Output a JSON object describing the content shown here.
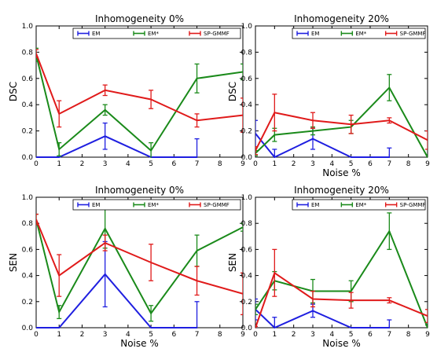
{
  "chart_data": [
    {
      "type": "line",
      "title": "Inhomogeneity 0%",
      "xlabel": "",
      "ylabel": "DSC",
      "xlim": [
        0,
        9
      ],
      "ylim": [
        0,
        1.0
      ],
      "xticks": [
        "0",
        "1",
        "2",
        "3",
        "4",
        "5",
        "6",
        "7",
        "8",
        "9"
      ],
      "yticks": [
        "0.0",
        "0.2",
        "0.4",
        "0.6",
        "0.8",
        "1.0"
      ],
      "legend": "top",
      "series": [
        {
          "name": "EM",
          "color": "#1f1fe0",
          "x": [
            0,
            1,
            3,
            5,
            7
          ],
          "y": [
            0.0,
            0.0,
            0.16,
            0.0,
            0.0
          ],
          "err": [
            0,
            0,
            0.1,
            0,
            0.14
          ]
        },
        {
          "name": "EM*",
          "color": "#1a8a1a",
          "x": [
            0,
            1,
            3,
            5,
            7,
            9
          ],
          "y": [
            0.78,
            0.06,
            0.36,
            0.05,
            0.6,
            0.65
          ],
          "err": [
            0.05,
            0.05,
            0.04,
            0.06,
            0.11,
            0.06
          ]
        },
        {
          "name": "SP-GMMF",
          "color": "#e01a1a",
          "x": [
            0,
            1,
            3,
            5,
            7,
            9
          ],
          "y": [
            0.79,
            0.33,
            0.51,
            0.44,
            0.28,
            0.32
          ],
          "err": [
            0.03,
            0.1,
            0.04,
            0.07,
            0.05,
            0.13
          ]
        }
      ]
    },
    {
      "type": "line",
      "title": "Inhomogeneity 20%",
      "xlabel": "Noise %",
      "ylabel": "DSC",
      "xlim": [
        0,
        9
      ],
      "ylim": [
        0,
        1.0
      ],
      "xticks": [
        "0",
        "1",
        "2",
        "3",
        "4",
        "5",
        "6",
        "7",
        "8",
        "9"
      ],
      "yticks": [
        "0.0",
        "0.2",
        "0.4",
        "0.6",
        "0.8",
        "1.0"
      ],
      "legend": "top",
      "series": [
        {
          "name": "EM",
          "color": "#1f1fe0",
          "x": [
            0,
            1,
            3,
            5,
            7
          ],
          "y": [
            0.18,
            0.0,
            0.14,
            0.0,
            0.0
          ],
          "err": [
            0.1,
            0.06,
            0.08,
            0,
            0.07
          ]
        },
        {
          "name": "EM*",
          "color": "#1a8a1a",
          "x": [
            0,
            1,
            3,
            5,
            7,
            9
          ],
          "y": [
            0.03,
            0.17,
            0.2,
            0.23,
            0.53,
            0.0
          ],
          "err": [
            0.02,
            0.05,
            0.03,
            0.05,
            0.1,
            0.02
          ]
        },
        {
          "name": "SP-GMMF",
          "color": "#e01a1a",
          "x": [
            0,
            1,
            3,
            5,
            7,
            9
          ],
          "y": [
            0.05,
            0.34,
            0.28,
            0.25,
            0.28,
            0.13
          ],
          "err": [
            0.03,
            0.14,
            0.06,
            0.07,
            0.02,
            0.07
          ]
        }
      ]
    },
    {
      "type": "line",
      "title": "Inhomogeneity 0%",
      "xlabel": "Noise %",
      "ylabel": "SEN",
      "xlim": [
        0,
        9
      ],
      "ylim": [
        0,
        1.0
      ],
      "xticks": [
        "0",
        "1",
        "2",
        "3",
        "4",
        "5",
        "6",
        "7",
        "8",
        "9"
      ],
      "yticks": [
        "0.0",
        "0.2",
        "0.4",
        "0.6",
        "0.8",
        "1.0"
      ],
      "legend": "top",
      "series": [
        {
          "name": "EM",
          "color": "#1f1fe0",
          "x": [
            0,
            1,
            3,
            5,
            7
          ],
          "y": [
            0.0,
            0.0,
            0.41,
            0.0,
            0.0
          ],
          "err": [
            0,
            0,
            0.25,
            0,
            0.2
          ]
        },
        {
          "name": "EM*",
          "color": "#1a8a1a",
          "x": [
            0,
            1,
            3,
            5,
            7,
            9
          ],
          "y": [
            0.83,
            0.12,
            0.76,
            0.11,
            0.59,
            0.77
          ],
          "err": [
            0.04,
            0.05,
            0.15,
            0.06,
            0.12,
            0.03
          ]
        },
        {
          "name": "SP-GMMF",
          "color": "#e01a1a",
          "x": [
            0,
            1,
            3,
            5,
            7,
            9
          ],
          "y": [
            0.83,
            0.4,
            0.65,
            0.5,
            0.36,
            0.26
          ],
          "err": [
            0.04,
            0.16,
            0.06,
            0.14,
            0.11,
            0.16
          ]
        }
      ]
    },
    {
      "type": "line",
      "title": "Inhomogeneity 20%",
      "xlabel": "Noise %",
      "ylabel": "SEN",
      "xlim": [
        0,
        9
      ],
      "ylim": [
        0,
        1.0
      ],
      "xticks": [
        "0",
        "1",
        "2",
        "3",
        "4",
        "5",
        "6",
        "7",
        "8",
        "9"
      ],
      "yticks": [
        "0.0",
        "0.2",
        "0.4",
        "0.6",
        "0.8",
        "1.0"
      ],
      "legend": "top",
      "series": [
        {
          "name": "EM",
          "color": "#1f1fe0",
          "x": [
            0,
            1,
            3,
            5,
            7
          ],
          "y": [
            0.14,
            0.0,
            0.13,
            0.0,
            0.0
          ],
          "err": [
            0.08,
            0.08,
            0.05,
            0,
            0.06
          ]
        },
        {
          "name": "EM*",
          "color": "#1a8a1a",
          "x": [
            0,
            1,
            3,
            5,
            7,
            9
          ],
          "y": [
            0.14,
            0.36,
            0.28,
            0.28,
            0.74,
            0.0
          ],
          "err": [
            0.04,
            0.07,
            0.09,
            0.08,
            0.14,
            0.02
          ]
        },
        {
          "name": "SP-GMMF",
          "color": "#e01a1a",
          "x": [
            0,
            1,
            3,
            5,
            7,
            9
          ],
          "y": [
            0.0,
            0.42,
            0.22,
            0.21,
            0.21,
            0.09
          ],
          "err": [
            0.01,
            0.18,
            0.06,
            0.06,
            0.02,
            0.05
          ]
        }
      ]
    }
  ]
}
